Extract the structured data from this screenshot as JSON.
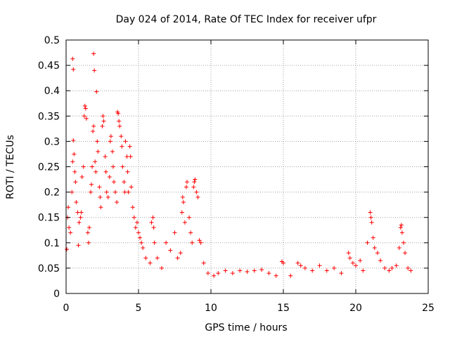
{
  "chart_data": {
    "type": "scatter",
    "title": "Day 024 of 2014, Rate Of TEC Index for receiver ufpr",
    "xlabel": "GPS time / hours",
    "ylabel": "ROTI / TECUs",
    "xlim": [
      0,
      25
    ],
    "ylim": [
      0,
      0.5
    ],
    "xticks": [
      0,
      5,
      10,
      15,
      20,
      25
    ],
    "xtick_labels": [
      "0",
      "5",
      "10",
      "15",
      "20",
      "25"
    ],
    "yticks": [
      0,
      0.05,
      0.1,
      0.15,
      0.2,
      0.25,
      0.3,
      0.35,
      0.4,
      0.45,
      0.5
    ],
    "ytick_labels": [
      "0",
      "0.05",
      "0.1",
      "0.15",
      "0.2",
      "0.25",
      "0.3",
      "0.35",
      "0.4",
      "0.45",
      "0.5"
    ],
    "grid": true,
    "marker": "+",
    "color": "#ff0000",
    "series": [
      {
        "name": "ROTI",
        "points": [
          [
            0.05,
            0.087
          ],
          [
            0.1,
            0.15
          ],
          [
            0.15,
            0.17
          ],
          [
            0.2,
            0.13
          ],
          [
            0.3,
            0.12
          ],
          [
            0.4,
            0.2
          ],
          [
            0.45,
            0.26
          ],
          [
            0.5,
            0.302
          ],
          [
            0.55,
            0.275
          ],
          [
            0.45,
            0.463
          ],
          [
            0.5,
            0.442
          ],
          [
            0.6,
            0.24
          ],
          [
            0.65,
            0.22
          ],
          [
            0.7,
            0.18
          ],
          [
            0.8,
            0.16
          ],
          [
            0.85,
            0.095
          ],
          [
            0.9,
            0.14
          ],
          [
            1.0,
            0.15
          ],
          [
            1.05,
            0.16
          ],
          [
            1.1,
            0.23
          ],
          [
            1.2,
            0.25
          ],
          [
            1.25,
            0.35
          ],
          [
            1.3,
            0.37
          ],
          [
            1.35,
            0.365
          ],
          [
            1.4,
            0.345
          ],
          [
            1.5,
            0.12
          ],
          [
            1.55,
            0.1
          ],
          [
            1.6,
            0.13
          ],
          [
            1.7,
            0.2
          ],
          [
            1.75,
            0.215
          ],
          [
            1.8,
            0.25
          ],
          [
            1.85,
            0.32
          ],
          [
            1.9,
            0.33
          ],
          [
            1.9,
            0.473
          ],
          [
            1.95,
            0.44
          ],
          [
            2.0,
            0.26
          ],
          [
            2.05,
            0.24
          ],
          [
            2.1,
            0.398
          ],
          [
            2.15,
            0.3
          ],
          [
            2.2,
            0.28
          ],
          [
            2.3,
            0.21
          ],
          [
            2.35,
            0.19
          ],
          [
            2.4,
            0.17
          ],
          [
            2.5,
            0.33
          ],
          [
            2.55,
            0.35
          ],
          [
            2.6,
            0.34
          ],
          [
            2.7,
            0.27
          ],
          [
            2.75,
            0.24
          ],
          [
            2.8,
            0.2
          ],
          [
            2.9,
            0.19
          ],
          [
            3.0,
            0.23
          ],
          [
            3.05,
            0.3
          ],
          [
            3.1,
            0.31
          ],
          [
            3.2,
            0.28
          ],
          [
            3.25,
            0.25
          ],
          [
            3.3,
            0.22
          ],
          [
            3.4,
            0.2
          ],
          [
            3.5,
            0.18
          ],
          [
            3.55,
            0.358
          ],
          [
            3.6,
            0.355
          ],
          [
            3.65,
            0.34
          ],
          [
            3.7,
            0.33
          ],
          [
            3.8,
            0.31
          ],
          [
            3.85,
            0.29
          ],
          [
            3.9,
            0.25
          ],
          [
            4.0,
            0.22
          ],
          [
            4.05,
            0.2
          ],
          [
            4.1,
            0.3
          ],
          [
            4.2,
            0.27
          ],
          [
            4.25,
            0.24
          ],
          [
            4.3,
            0.2
          ],
          [
            4.4,
            0.29
          ],
          [
            4.45,
            0.27
          ],
          [
            4.5,
            0.21
          ],
          [
            4.6,
            0.17
          ],
          [
            4.7,
            0.15
          ],
          [
            4.8,
            0.13
          ],
          [
            4.9,
            0.14
          ],
          [
            5.0,
            0.12
          ],
          [
            5.1,
            0.11
          ],
          [
            5.2,
            0.1
          ],
          [
            5.3,
            0.09
          ],
          [
            5.5,
            0.07
          ],
          [
            5.8,
            0.06
          ],
          [
            5.9,
            0.14
          ],
          [
            6.0,
            0.15
          ],
          [
            6.05,
            0.13
          ],
          [
            6.1,
            0.1
          ],
          [
            6.3,
            0.07
          ],
          [
            6.6,
            0.05
          ],
          [
            6.9,
            0.1
          ],
          [
            7.2,
            0.085
          ],
          [
            7.5,
            0.12
          ],
          [
            7.7,
            0.07
          ],
          [
            7.9,
            0.08
          ],
          [
            8.0,
            0.16
          ],
          [
            8.05,
            0.19
          ],
          [
            8.1,
            0.18
          ],
          [
            8.2,
            0.14
          ],
          [
            8.3,
            0.21
          ],
          [
            8.35,
            0.22
          ],
          [
            8.5,
            0.15
          ],
          [
            8.6,
            0.12
          ],
          [
            8.7,
            0.1
          ],
          [
            8.8,
            0.21
          ],
          [
            8.85,
            0.22
          ],
          [
            8.9,
            0.225
          ],
          [
            9.0,
            0.2
          ],
          [
            9.1,
            0.19
          ],
          [
            9.2,
            0.105
          ],
          [
            9.3,
            0.1
          ],
          [
            9.5,
            0.06
          ],
          [
            9.8,
            0.04
          ],
          [
            10.2,
            0.035
          ],
          [
            10.5,
            0.04
          ],
          [
            11.0,
            0.045
          ],
          [
            11.5,
            0.04
          ],
          [
            12.0,
            0.045
          ],
          [
            12.5,
            0.043
          ],
          [
            13.0,
            0.045
          ],
          [
            13.5,
            0.047
          ],
          [
            14.0,
            0.04
          ],
          [
            14.5,
            0.035
          ],
          [
            14.9,
            0.063
          ],
          [
            15.0,
            0.06
          ],
          [
            15.5,
            0.035
          ],
          [
            16.0,
            0.06
          ],
          [
            16.2,
            0.055
          ],
          [
            16.5,
            0.05
          ],
          [
            17.0,
            0.045
          ],
          [
            17.5,
            0.055
          ],
          [
            18.0,
            0.045
          ],
          [
            18.5,
            0.05
          ],
          [
            19.0,
            0.04
          ],
          [
            19.5,
            0.08
          ],
          [
            19.6,
            0.07
          ],
          [
            19.8,
            0.06
          ],
          [
            20.0,
            0.055
          ],
          [
            20.3,
            0.065
          ],
          [
            20.5,
            0.045
          ],
          [
            20.8,
            0.1
          ],
          [
            21.0,
            0.16
          ],
          [
            21.05,
            0.15
          ],
          [
            21.1,
            0.14
          ],
          [
            21.2,
            0.11
          ],
          [
            21.3,
            0.09
          ],
          [
            21.5,
            0.08
          ],
          [
            21.7,
            0.065
          ],
          [
            22.0,
            0.05
          ],
          [
            22.3,
            0.045
          ],
          [
            22.5,
            0.05
          ],
          [
            22.8,
            0.055
          ],
          [
            23.0,
            0.09
          ],
          [
            23.1,
            0.13
          ],
          [
            23.15,
            0.135
          ],
          [
            23.2,
            0.12
          ],
          [
            23.3,
            0.1
          ],
          [
            23.4,
            0.08
          ],
          [
            23.6,
            0.05
          ],
          [
            23.8,
            0.045
          ]
        ]
      }
    ]
  }
}
